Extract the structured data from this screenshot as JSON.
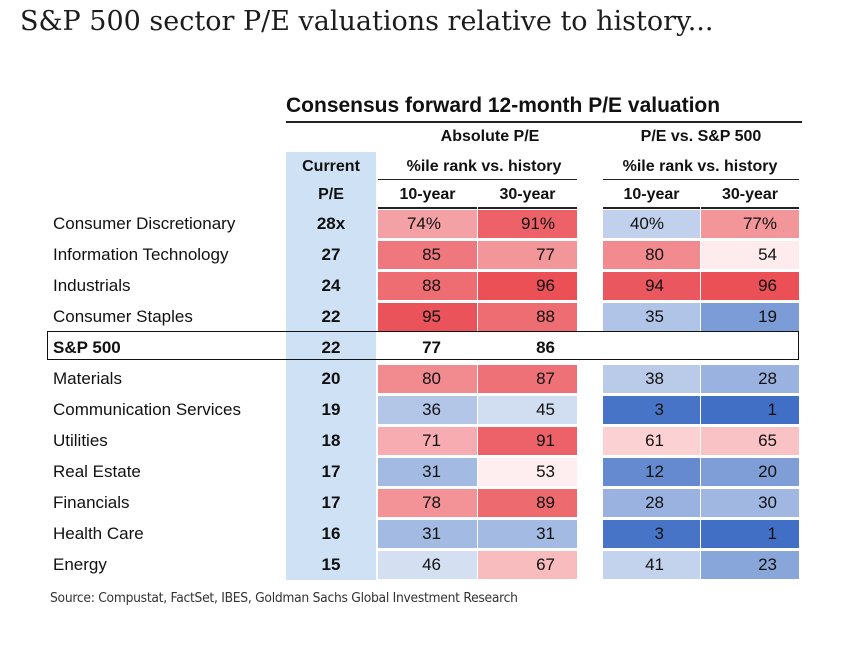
{
  "title": "S&P 500 sector P/E valuations relative to history...",
  "source": "Source: Compustat, FactSet, IBES, Goldman Sachs Global Investment Research",
  "chart_data": {
    "type": "table",
    "title": "Consensus forward 12-month P/E valuation",
    "headers": {
      "current": "Current",
      "current_sub": "P/E",
      "absolute": "Absolute P/E",
      "relative": "P/E vs. S&P 500",
      "rank": "%ile rank vs. history",
      "y10": "10-year",
      "y30": "30-year"
    },
    "highlight_row": "S&P 500",
    "rows": [
      {
        "sector": "Consumer Discretionary",
        "pe": "28x",
        "abs10": "74%",
        "abs30": "91%",
        "rel10": "40%",
        "rel30": "77%"
      },
      {
        "sector": "Information Technology",
        "pe": "27",
        "abs10": "85",
        "abs30": "77",
        "rel10": "80",
        "rel30": "54"
      },
      {
        "sector": "Industrials",
        "pe": "24",
        "abs10": "88",
        "abs30": "96",
        "rel10": "94",
        "rel30": "96"
      },
      {
        "sector": "Consumer Staples",
        "pe": "22",
        "abs10": "95",
        "abs30": "88",
        "rel10": "35",
        "rel30": "19"
      },
      {
        "sector": "S&P 500",
        "pe": "22",
        "abs10": "77",
        "abs30": "86",
        "rel10": "",
        "rel30": ""
      },
      {
        "sector": "Materials",
        "pe": "20",
        "abs10": "80",
        "abs30": "87",
        "rel10": "38",
        "rel30": "28"
      },
      {
        "sector": "Communication Services",
        "pe": "19",
        "abs10": "36",
        "abs30": "45",
        "rel10": "3",
        "rel30": "1"
      },
      {
        "sector": "Utilities",
        "pe": "18",
        "abs10": "71",
        "abs30": "91",
        "rel10": "61",
        "rel30": "65"
      },
      {
        "sector": "Real Estate",
        "pe": "17",
        "abs10": "31",
        "abs30": "53",
        "rel10": "12",
        "rel30": "20"
      },
      {
        "sector": "Financials",
        "pe": "17",
        "abs10": "78",
        "abs30": "89",
        "rel10": "28",
        "rel30": "30"
      },
      {
        "sector": "Health Care",
        "pe": "16",
        "abs10": "31",
        "abs30": "31",
        "rel10": "3",
        "rel30": "1"
      },
      {
        "sector": "Energy",
        "pe": "15",
        "abs10": "46",
        "abs30": "67",
        "rel10": "41",
        "rel30": "23"
      }
    ]
  }
}
